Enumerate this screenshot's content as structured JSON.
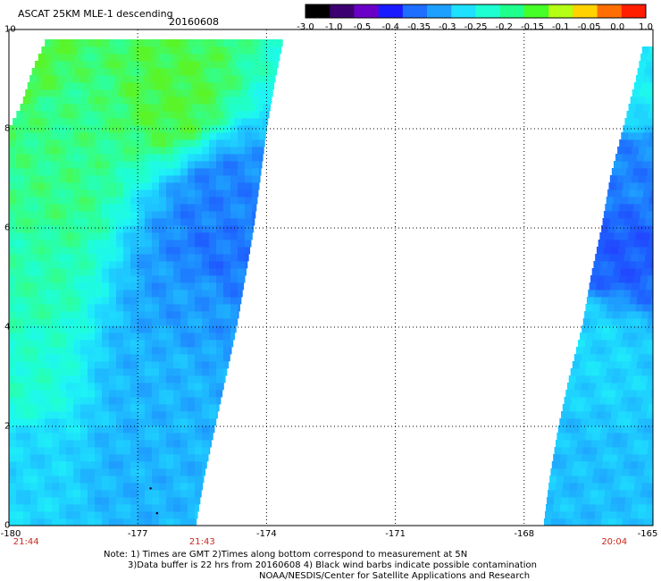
{
  "header": {
    "title": "ASCAT 25KM MLE-1 descending",
    "date": "20160608"
  },
  "colorbar": {
    "tick_labels": [
      "-3.0",
      "-1.0",
      "-0.5",
      "-0.4",
      "-0.35",
      "-0.3",
      "-0.25",
      "-0.2",
      "-0.15",
      "-0.1",
      "-0.05",
      "0.0",
      "1.0"
    ],
    "colors": [
      "#000000",
      "#3c0070",
      "#6a00c8",
      "#1a1aff",
      "#1e6eff",
      "#1ea0ff",
      "#1ee0ff",
      "#1effd2",
      "#1eff8c",
      "#46ff28",
      "#b4ff14",
      "#ffd200",
      "#ff6e00",
      "#ff1e00"
    ]
  },
  "axes": {
    "x_tick_labels": [
      "-180",
      "-177",
      "-174",
      "-171",
      "-168",
      "-165"
    ],
    "y_tick_labels": [
      "0",
      "2",
      "4",
      "6",
      "8",
      "10"
    ],
    "time_labels": [
      "21:44",
      "21:43",
      "20:04"
    ]
  },
  "notes": {
    "line1": "Note: 1) Times are GMT 2)Times along bottom correspond to measurement at 5N",
    "line2": "3)Data buffer is 22 hrs from 20160608 4) Black wind barbs indicate possible contamination",
    "line3": "NOAA/NESDIS/Center for Satellite Applications and Research"
  },
  "map_data": {
    "lon_range": [
      -180,
      -165
    ],
    "lat_range": [
      0,
      10
    ],
    "swaths": [
      {
        "name": "swath-west",
        "edges": [
          {
            "lat": 0.0,
            "lon_east": -175.65
          },
          {
            "lat": 1.0,
            "lon_east": -175.45
          },
          {
            "lat": 2.0,
            "lon_east": -175.2
          },
          {
            "lat": 3.0,
            "lon_east": -174.95
          },
          {
            "lat": 4.0,
            "lon_east": -174.7
          },
          {
            "lat": 5.0,
            "lon_east": -174.5
          },
          {
            "lat": 6.0,
            "lon_east": -174.3
          },
          {
            "lat": 7.0,
            "lon_east": -174.15
          },
          {
            "lat": 8.0,
            "lon_east": -174.0
          },
          {
            "lat": 9.0,
            "lon_east": -173.8
          },
          {
            "lat": 9.85,
            "lon_east": -173.6
          }
        ],
        "west_edge": [
          {
            "lat": 0.0,
            "lon": -180
          },
          {
            "lat": 8.0,
            "lon": -180
          },
          {
            "lat": 8.5,
            "lon": -179.7
          },
          {
            "lat": 9.2,
            "lon": -179.45
          },
          {
            "lat": 9.85,
            "lon": -179.1
          }
        ],
        "patches": [
          {
            "lon": -179.3,
            "lat": 9.2,
            "value": -0.17
          },
          {
            "lon": -178.8,
            "lat": 8.5,
            "value": -0.2
          },
          {
            "lon": -176.2,
            "lat": 8.6,
            "value": -0.17
          },
          {
            "lon": -175.0,
            "lat": 6.5,
            "value": -0.37
          },
          {
            "lon": -175.2,
            "lat": 5.5,
            "value": -0.38
          },
          {
            "lon": -175.8,
            "lat": 4.5,
            "value": -0.35
          },
          {
            "lon": -179.0,
            "lat": 6.8,
            "value": -0.2
          },
          {
            "lon": -179.6,
            "lat": 5.0,
            "value": -0.22
          },
          {
            "lon": -179.8,
            "lat": 3.0,
            "value": -0.24
          },
          {
            "lon": -176.5,
            "lat": 3.0,
            "value": -0.33
          },
          {
            "lon": -177.0,
            "lat": 1.0,
            "value": -0.33
          },
          {
            "lon": -179.5,
            "lat": 1.2,
            "value": -0.3
          }
        ]
      },
      {
        "name": "swath-east",
        "edges": [
          {
            "lat": 0.0,
            "lon_west": -167.55
          },
          {
            "lat": 1.0,
            "lon_west": -167.4
          },
          {
            "lat": 2.0,
            "lon_west": -167.2
          },
          {
            "lat": 3.0,
            "lon_west": -166.95
          },
          {
            "lat": 4.0,
            "lon_west": -166.65
          },
          {
            "lat": 5.0,
            "lon_west": -166.45
          },
          {
            "lat": 6.0,
            "lon_west": -166.2
          },
          {
            "lat": 7.0,
            "lon_west": -166.0
          },
          {
            "lat": 8.0,
            "lon_west": -165.7
          },
          {
            "lat": 9.0,
            "lon_west": -165.4
          },
          {
            "lat": 9.6,
            "lon_west": -165.25
          }
        ],
        "patches": [
          {
            "lon": -165.7,
            "lat": 5.6,
            "value": -0.4
          },
          {
            "lon": -165.6,
            "lat": 7.0,
            "value": -0.37
          },
          {
            "lon": -166.3,
            "lat": 3.5,
            "value": -0.3
          },
          {
            "lon": -166.8,
            "lat": 1.0,
            "value": -0.32
          },
          {
            "lon": -165.4,
            "lat": 9.0,
            "value": -0.28
          }
        ]
      }
    ]
  }
}
